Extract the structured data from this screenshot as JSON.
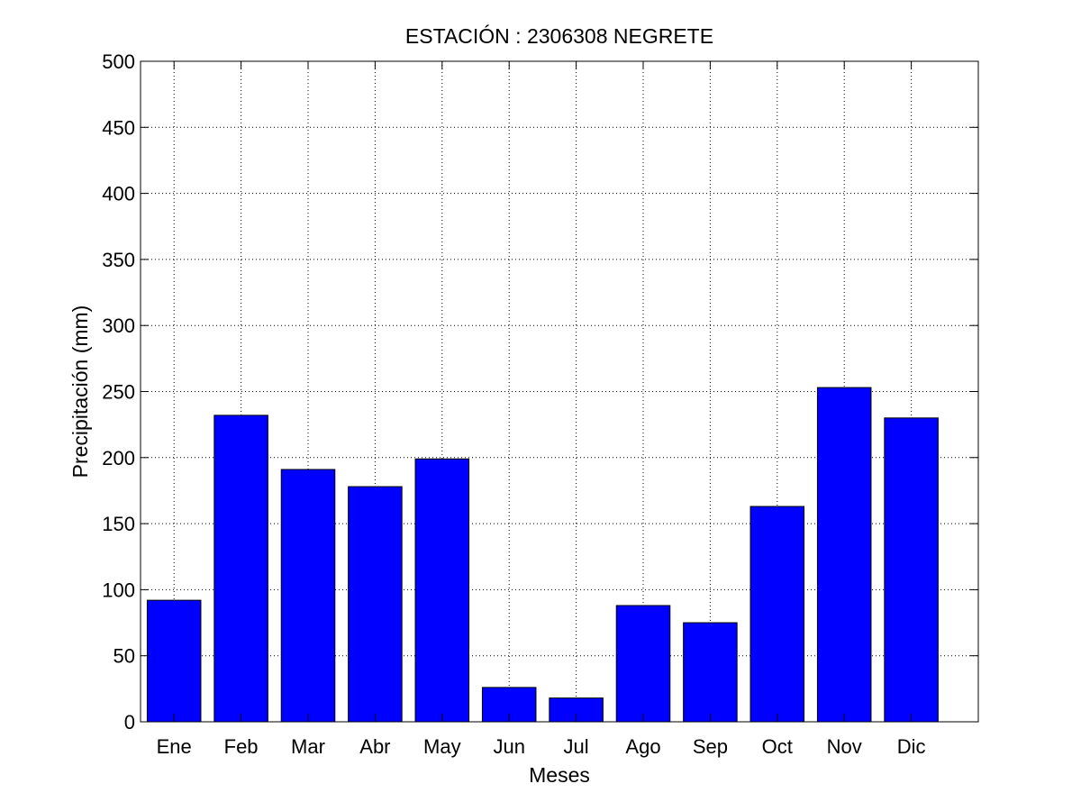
{
  "chart_data": {
    "type": "bar",
    "title": "ESTACIÓN :  2306308  NEGRETE",
    "xlabel": "Meses",
    "ylabel": "Precipitación (mm)",
    "categories": [
      "Ene",
      "Feb",
      "Mar",
      "Abr",
      "May",
      "Jun",
      "Jul",
      "Ago",
      "Sep",
      "Oct",
      "Nov",
      "Dic"
    ],
    "values": [
      92,
      232,
      191,
      178,
      199,
      26,
      18,
      88,
      75,
      163,
      253,
      230
    ],
    "ylim": [
      0,
      500
    ],
    "yticks": [
      0,
      50,
      100,
      150,
      200,
      250,
      300,
      350,
      400,
      450,
      500
    ],
    "grid": true,
    "bar_color": "#0000ff",
    "bar_edge_color": "#000000"
  }
}
